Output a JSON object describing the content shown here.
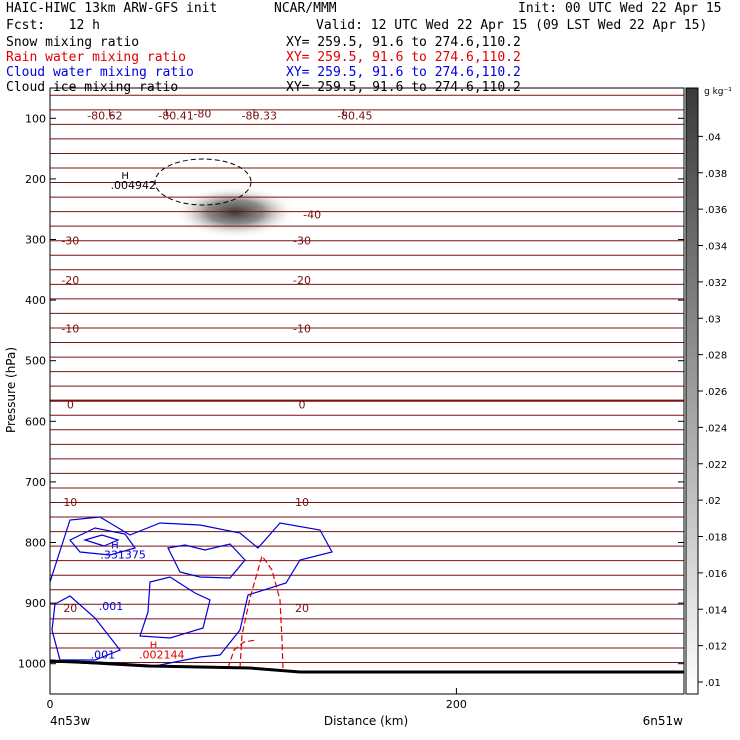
{
  "header": {
    "model_title": "HAIC-HIWC 13km ARW-GFS init",
    "agency": "NCAR/MMM",
    "init_time": "Init: 00 UTC Wed 22 Apr 15",
    "forecast": "Fcst:   12 h",
    "valid_time": "Valid: 12 UTC Wed 22 Apr 15 (09 LST Wed 22 Apr 15)"
  },
  "fields": [
    {
      "name": "Snow mixing ratio",
      "xy": "XY= 259.5, 91.6 to 274.6,110.2",
      "color": "#000000"
    },
    {
      "name": "Rain water mixing ratio",
      "xy": "XY= 259.5, 91.6 to 274.6,110.2",
      "color": "#e00000"
    },
    {
      "name": "Cloud water mixing ratio",
      "xy": "XY= 259.5, 91.6 to 274.6,110.2",
      "color": "#0000e0"
    },
    {
      "name": "Cloud ice mixing ratio",
      "xy": "XY= 259.5, 91.6 to 274.6,110.2",
      "color": "#000000"
    }
  ],
  "chart_data": {
    "type": "contour-cross-section",
    "xlabel": "Distance (km)",
    "ylabel": "Pressure (hPa)",
    "xlim": [
      0,
      312
    ],
    "ylim": [
      1050,
      50
    ],
    "x_ticks": [
      "0",
      "200"
    ],
    "x_tick_values": [
      0,
      200
    ],
    "y_ticks": [
      "100",
      "200",
      "300",
      "400",
      "500",
      "600",
      "700",
      "800",
      "900",
      "1000"
    ],
    "y_tick_values": [
      100,
      200,
      300,
      400,
      500,
      600,
      700,
      800,
      900,
      1000
    ],
    "x_endpoint_labels": [
      "4n53w",
      "6n51w"
    ],
    "colorbar": {
      "unit": "g kg⁻¹",
      "ticks": [
        ".01",
        ".012",
        ".014",
        ".016",
        ".018",
        ".02",
        ".022",
        ".024",
        ".026",
        ".028",
        ".03",
        ".032",
        ".034",
        ".036",
        ".038",
        ".04"
      ],
      "values": [
        0.01,
        0.012,
        0.014,
        0.016,
        0.018,
        0.02,
        0.022,
        0.024,
        0.026,
        0.028,
        0.03,
        0.032,
        0.034,
        0.036,
        0.038,
        0.04
      ],
      "color_low": "#ffffff",
      "color_high": "#3a3a3a"
    },
    "temperature_color": "#7a1010",
    "temperature_labels": [
      {
        "text": "-80.62",
        "x": 27,
        "p": 95
      },
      {
        "text": "-80.41",
        "x": 62,
        "p": 95
      },
      {
        "text": "-80",
        "x": 75,
        "p": 92
      },
      {
        "text": "-80.33",
        "x": 103,
        "p": 95
      },
      {
        "text": "-80.45",
        "x": 150,
        "p": 95
      },
      {
        "text": "-40",
        "x": 129,
        "p": 259
      },
      {
        "text": "-30",
        "x": 10,
        "p": 302
      },
      {
        "text": "-30",
        "x": 124,
        "p": 302
      },
      {
        "text": "-20",
        "x": 10,
        "p": 367
      },
      {
        "text": "-20",
        "x": 124,
        "p": 367
      },
      {
        "text": "-10",
        "x": 10,
        "p": 447
      },
      {
        "text": "-10",
        "x": 124,
        "p": 447
      },
      {
        "text": "0",
        "x": 10,
        "p": 572
      },
      {
        "text": "0",
        "x": 124,
        "p": 572
      },
      {
        "text": "10",
        "x": 10,
        "p": 733
      },
      {
        "text": "10",
        "x": 124,
        "p": 733
      },
      {
        "text": "20",
        "x": 10,
        "p": 908
      },
      {
        "text": "20",
        "x": 124,
        "p": 908
      }
    ],
    "low_markers": [
      {
        "text": "L",
        "x": 30,
        "p": 90
      },
      {
        "text": "L",
        "x": 58,
        "p": 90
      },
      {
        "text": "L",
        "x": 101,
        "p": 90
      },
      {
        "text": "L",
        "x": 145,
        "p": 90
      }
    ],
    "maxima": [
      {
        "field": "Snow mixing ratio",
        "text": ".004942",
        "x": 41,
        "p": 210
      },
      {
        "field": "Cloud water mixing ratio",
        "text": ".331375",
        "x": 36,
        "p": 820
      },
      {
        "field": "Cloud water mixing ratio",
        "text": ".001",
        "x": 30,
        "p": 905
      },
      {
        "field": "Cloud water mixing ratio",
        "text": ".001",
        "x": 26,
        "p": 985
      },
      {
        "field": "Rain water mixing ratio",
        "text": ".002144",
        "x": 55,
        "p": 985
      }
    ],
    "max_symbol": "H"
  }
}
